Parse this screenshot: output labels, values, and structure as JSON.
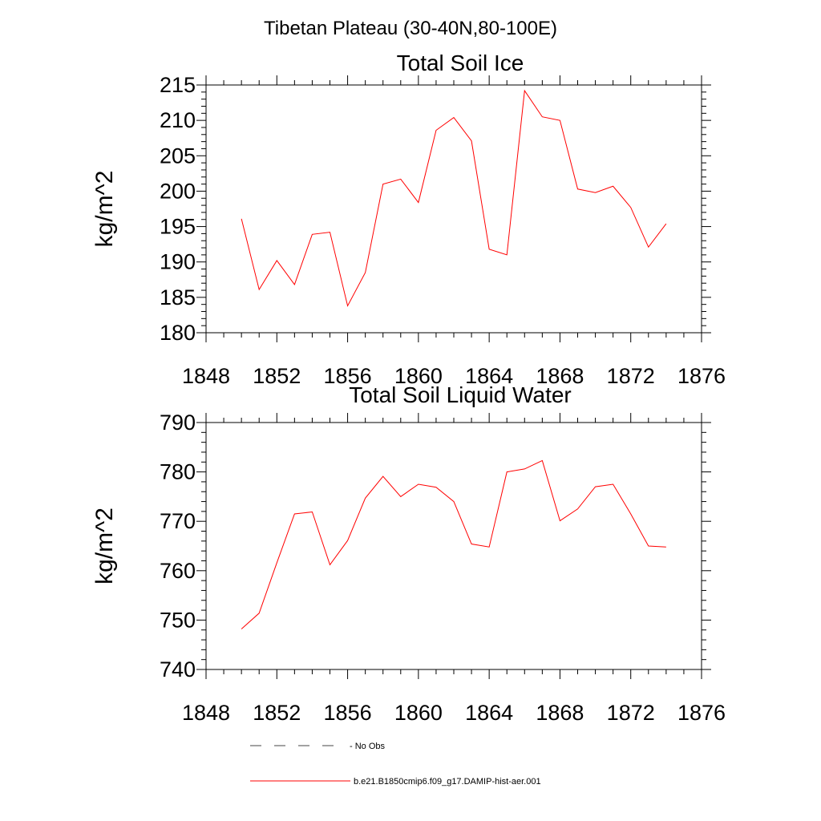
{
  "figure": {
    "title": "Tibetan Plateau (30-40N,80-100E)"
  },
  "chart_data": [
    {
      "type": "line",
      "title": "Total Soil Ice",
      "xlabel": "",
      "ylabel": "kg/m^2",
      "xlim": [
        1848,
        1876
      ],
      "ylim": [
        180,
        215
      ],
      "xticks": [
        1848,
        1852,
        1856,
        1860,
        1864,
        1868,
        1872,
        1876
      ],
      "yticks": [
        180,
        185,
        190,
        195,
        200,
        205,
        210,
        215
      ],
      "x": [
        1850,
        1851,
        1852,
        1853,
        1854,
        1855,
        1856,
        1857,
        1858,
        1859,
        1860,
        1861,
        1862,
        1863,
        1864,
        1865,
        1866,
        1867,
        1868,
        1869,
        1870,
        1871,
        1872,
        1873,
        1874
      ],
      "series": [
        {
          "name": "b.e21.B1850cmip6.f09_g17.DAMIP-hist-aer.001",
          "color": "#ff0000",
          "values": [
            196.1,
            186.1,
            190.2,
            186.8,
            193.9,
            194.2,
            183.8,
            188.5,
            201.0,
            201.7,
            198.4,
            208.6,
            210.4,
            207.1,
            191.8,
            191.0,
            214.2,
            210.5,
            210.0,
            200.3,
            199.8,
            200.7,
            197.7,
            192.1,
            195.4
          ]
        }
      ]
    },
    {
      "type": "line",
      "title": "Total Soil Liquid Water",
      "xlabel": "",
      "ylabel": "kg/m^2",
      "xlim": [
        1848,
        1876
      ],
      "ylim": [
        740,
        790
      ],
      "xticks": [
        1848,
        1852,
        1856,
        1860,
        1864,
        1868,
        1872,
        1876
      ],
      "yticks": [
        740,
        750,
        760,
        770,
        780,
        790
      ],
      "x": [
        1850,
        1851,
        1852,
        1853,
        1854,
        1855,
        1856,
        1857,
        1858,
        1859,
        1860,
        1861,
        1862,
        1863,
        1864,
        1865,
        1866,
        1867,
        1868,
        1869,
        1870,
        1871,
        1872,
        1873,
        1874
      ],
      "series": [
        {
          "name": "b.e21.B1850cmip6.f09_g17.DAMIP-hist-aer.001",
          "color": "#ff0000",
          "values": [
            748.2,
            751.4,
            761.6,
            771.5,
            771.9,
            761.2,
            766.1,
            774.7,
            779.1,
            775.0,
            777.5,
            776.9,
            774.0,
            765.4,
            764.8,
            780.0,
            780.6,
            782.3,
            770.1,
            772.5,
            777.0,
            777.5,
            771.5,
            765.0,
            764.8
          ]
        }
      ]
    }
  ],
  "legend": {
    "entries": [
      {
        "label": "No Obs",
        "style": "dashed",
        "color": "#000000"
      },
      {
        "label": "b.e21.B1850cmip6.f09_g17.DAMIP-hist-aer.001",
        "style": "solid",
        "color": "#ff0000"
      }
    ]
  }
}
